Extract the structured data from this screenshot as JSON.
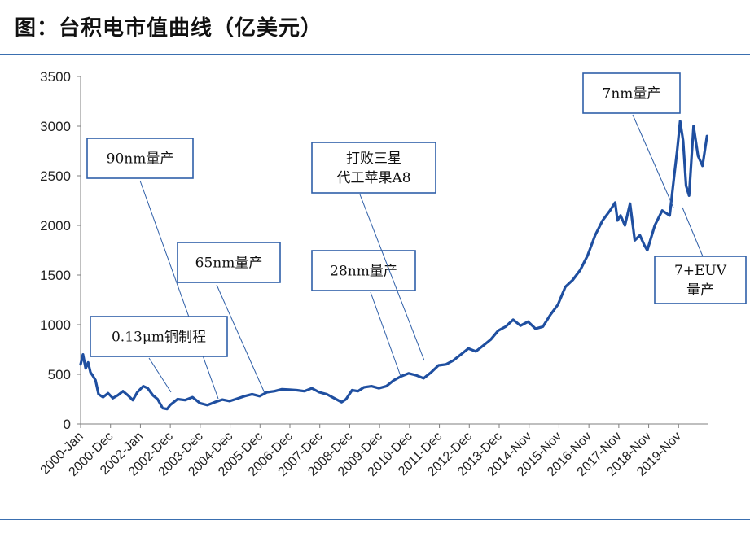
{
  "header": {
    "title": "图：台积电市值曲线（亿美元）"
  },
  "colors": {
    "line": "#1f4fa0",
    "rule": "#3a6fb0",
    "box_border": "#2f5fa8",
    "axis": "#7f7f7f"
  },
  "chart_data": {
    "type": "line",
    "title": "图：台积电市值曲线（亿美元）",
    "xlabel": "",
    "ylabel": "",
    "ylim": [
      0,
      3500
    ],
    "yticks": [
      0,
      500,
      1000,
      1500,
      2000,
      2500,
      3000,
      3500
    ],
    "xlim": [
      2000.0,
      2021.05
    ],
    "grid": false,
    "legend": "none",
    "xtick_labels": [
      "2000-Jan",
      "2000-Dec",
      "2002-Jan",
      "2002-Dec",
      "2003-Dec",
      "2004-Dec",
      "2005-Dec",
      "2006-Dec",
      "2007-Dec",
      "2008-Dec",
      "2009-Dec",
      "2010-Dec",
      "2011-Dec",
      "2012-Dec",
      "2013-Dec",
      "2014-Nov",
      "2015-Nov",
      "2016-Nov",
      "2017-Nov",
      "2018-Nov",
      "2019-Nov"
    ],
    "series": [
      {
        "x": [
          2000.0,
          2000.08,
          2000.17,
          2000.25,
          2000.33,
          2000.42,
          2000.5,
          2000.6,
          2000.75,
          2000.92,
          2001.08,
          2001.25,
          2001.42,
          2001.58,
          2001.75,
          2001.9,
          2002.0,
          2002.1,
          2002.25,
          2002.42,
          2002.58,
          2002.75,
          2002.9,
          2003.0,
          2003.25,
          2003.5,
          2003.75,
          2004.0,
          2004.25,
          2004.5,
          2004.75,
          2005.0,
          2005.25,
          2005.5,
          2005.75,
          2006.0,
          2006.25,
          2006.5,
          2006.75,
          2007.0,
          2007.25,
          2007.5,
          2007.75,
          2008.0,
          2008.25,
          2008.5,
          2008.75,
          2008.9,
          2009.1,
          2009.3,
          2009.5,
          2009.75,
          2010.0,
          2010.25,
          2010.5,
          2010.75,
          2011.0,
          2011.25,
          2011.5,
          2011.75,
          2012.0,
          2012.25,
          2012.5,
          2012.75,
          2013.0,
          2013.25,
          2013.5,
          2013.75,
          2014.0,
          2014.25,
          2014.5,
          2014.75,
          2015.0,
          2015.25,
          2015.5,
          2015.75,
          2016.0,
          2016.25,
          2016.5,
          2016.75,
          2017.0,
          2017.25,
          2017.5,
          2017.75,
          2017.92,
          2018.0,
          2018.1,
          2018.25,
          2018.42,
          2018.58,
          2018.75,
          2018.9,
          2019.0,
          2019.25,
          2019.5,
          2019.75,
          2019.9,
          2020.0,
          2020.1,
          2020.2,
          2020.3,
          2020.4,
          2020.55,
          2020.7,
          2020.85,
          2021.0
        ],
        "values": [
          600,
          700,
          560,
          620,
          520,
          480,
          440,
          300,
          270,
          310,
          260,
          290,
          330,
          290,
          240,
          320,
          350,
          380,
          360,
          290,
          250,
          160,
          150,
          190,
          250,
          240,
          270,
          210,
          190,
          220,
          245,
          230,
          255,
          280,
          300,
          280,
          320,
          330,
          350,
          345,
          340,
          330,
          360,
          320,
          300,
          260,
          220,
          250,
          340,
          330,
          370,
          380,
          360,
          380,
          440,
          480,
          510,
          490,
          460,
          520,
          590,
          600,
          640,
          700,
          760,
          730,
          790,
          850,
          940,
          980,
          1050,
          990,
          1030,
          960,
          980,
          1100,
          1200,
          1380,
          1450,
          1550,
          1700,
          1900,
          2050,
          2150,
          2230,
          2050,
          2100,
          2000,
          2220,
          1850,
          1900,
          1800,
          1750,
          2000,
          2150,
          2100,
          2500,
          2750,
          3050,
          2850,
          2400,
          2300,
          3000,
          2700,
          2600,
          2900
        ]
      }
    ],
    "annotations": [
      {
        "lines": [
          "90nm量产"
        ]
      },
      {
        "lines": [
          "65nm量产"
        ]
      },
      {
        "lines": [
          "0.13μm铜制程"
        ]
      },
      {
        "lines": [
          "28nm量产"
        ]
      },
      {
        "lines": [
          "打败三星",
          "代工苹果A8"
        ]
      },
      {
        "lines": [
          "7nm量产"
        ]
      },
      {
        "lines": [
          "7+EUV",
          "量产"
        ]
      }
    ]
  }
}
